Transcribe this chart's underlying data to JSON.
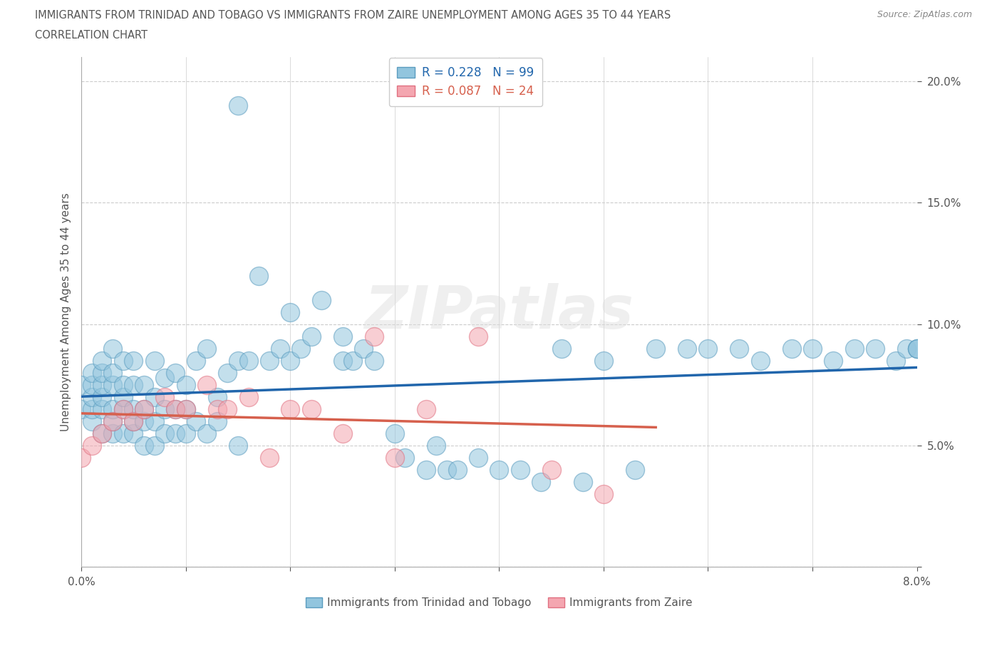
{
  "title_line1": "IMMIGRANTS FROM TRINIDAD AND TOBAGO VS IMMIGRANTS FROM ZAIRE UNEMPLOYMENT AMONG AGES 35 TO 44 YEARS",
  "title_line2": "CORRELATION CHART",
  "source": "Source: ZipAtlas.com",
  "ylabel": "Unemployment Among Ages 35 to 44 years",
  "xlim": [
    0.0,
    0.08
  ],
  "ylim": [
    0.0,
    0.21
  ],
  "xticks": [
    0.0,
    0.01,
    0.02,
    0.03,
    0.04,
    0.05,
    0.06,
    0.07,
    0.08
  ],
  "xtick_labels": [
    "0.0%",
    "",
    "",
    "",
    "",
    "",
    "",
    "",
    "8.0%"
  ],
  "yticks": [
    0.0,
    0.05,
    0.1,
    0.15,
    0.2
  ],
  "ytick_labels": [
    "",
    "5.0%",
    "10.0%",
    "15.0%",
    "20.0%"
  ],
  "series1_name": "Immigrants from Trinidad and Tobago",
  "series1_R": 0.228,
  "series1_N": 99,
  "series1_color": "#92c5de",
  "series1_edge_color": "#5a9cbf",
  "series1_line_color": "#2166ac",
  "series2_name": "Immigrants from Zaire",
  "series2_R": 0.087,
  "series2_N": 24,
  "series2_color": "#f4a6b0",
  "series2_edge_color": "#e07080",
  "series2_line_color": "#d6604d",
  "watermark": "ZIPatlas",
  "background_color": "#ffffff",
  "grid_color": "#cccccc",
  "series1_x": [
    0.0,
    0.0,
    0.001,
    0.001,
    0.001,
    0.001,
    0.001,
    0.002,
    0.002,
    0.002,
    0.002,
    0.002,
    0.002,
    0.003,
    0.003,
    0.003,
    0.003,
    0.003,
    0.003,
    0.004,
    0.004,
    0.004,
    0.004,
    0.004,
    0.005,
    0.005,
    0.005,
    0.005,
    0.005,
    0.006,
    0.006,
    0.006,
    0.006,
    0.007,
    0.007,
    0.007,
    0.007,
    0.008,
    0.008,
    0.008,
    0.009,
    0.009,
    0.009,
    0.01,
    0.01,
    0.01,
    0.011,
    0.011,
    0.012,
    0.012,
    0.013,
    0.013,
    0.014,
    0.015,
    0.015,
    0.016,
    0.017,
    0.018,
    0.019,
    0.02,
    0.02,
    0.021,
    0.022,
    0.023,
    0.015,
    0.025,
    0.025,
    0.026,
    0.027,
    0.028,
    0.03,
    0.031,
    0.033,
    0.034,
    0.035,
    0.036,
    0.038,
    0.04,
    0.042,
    0.044,
    0.046,
    0.048,
    0.05,
    0.053,
    0.055,
    0.058,
    0.06,
    0.063,
    0.065,
    0.068,
    0.07,
    0.072,
    0.074,
    0.076,
    0.078,
    0.079,
    0.08,
    0.08,
    0.08
  ],
  "series1_y": [
    0.065,
    0.075,
    0.06,
    0.065,
    0.07,
    0.075,
    0.08,
    0.055,
    0.065,
    0.07,
    0.075,
    0.08,
    0.085,
    0.055,
    0.06,
    0.065,
    0.075,
    0.08,
    0.09,
    0.055,
    0.065,
    0.07,
    0.075,
    0.085,
    0.055,
    0.06,
    0.065,
    0.075,
    0.085,
    0.05,
    0.06,
    0.065,
    0.075,
    0.05,
    0.06,
    0.07,
    0.085,
    0.055,
    0.065,
    0.078,
    0.055,
    0.065,
    0.08,
    0.055,
    0.065,
    0.075,
    0.06,
    0.085,
    0.055,
    0.09,
    0.06,
    0.07,
    0.08,
    0.05,
    0.085,
    0.085,
    0.12,
    0.085,
    0.09,
    0.085,
    0.105,
    0.09,
    0.095,
    0.11,
    0.19,
    0.085,
    0.095,
    0.085,
    0.09,
    0.085,
    0.055,
    0.045,
    0.04,
    0.05,
    0.04,
    0.04,
    0.045,
    0.04,
    0.04,
    0.035,
    0.09,
    0.035,
    0.085,
    0.04,
    0.09,
    0.09,
    0.09,
    0.09,
    0.085,
    0.09,
    0.09,
    0.085,
    0.09,
    0.09,
    0.085,
    0.09,
    0.09,
    0.09,
    0.09
  ],
  "series2_x": [
    0.0,
    0.001,
    0.002,
    0.003,
    0.004,
    0.005,
    0.006,
    0.008,
    0.009,
    0.01,
    0.012,
    0.013,
    0.014,
    0.016,
    0.018,
    0.02,
    0.022,
    0.025,
    0.028,
    0.03,
    0.033,
    0.038,
    0.045,
    0.05
  ],
  "series2_y": [
    0.045,
    0.05,
    0.055,
    0.06,
    0.065,
    0.06,
    0.065,
    0.07,
    0.065,
    0.065,
    0.075,
    0.065,
    0.065,
    0.07,
    0.045,
    0.065,
    0.065,
    0.055,
    0.095,
    0.045,
    0.065,
    0.095,
    0.04,
    0.03
  ]
}
